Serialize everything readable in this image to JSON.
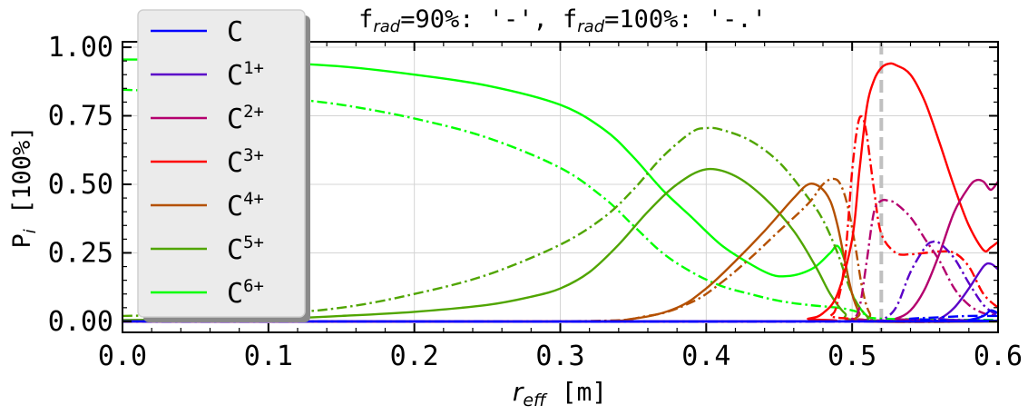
{
  "chart_data": {
    "type": "line",
    "title": {
      "f1": "f",
      "f1_sub": "rad",
      "f1_rest": "=90%: '-', ",
      "f2": "f",
      "f2_sub": "rad",
      "f2_rest": "=100%: '-.'"
    },
    "xlabel": {
      "main": "r",
      "sub": "eff",
      "unit": " [m]"
    },
    "ylabel": {
      "main": "P",
      "sub": "i",
      "unit": " [100%]"
    },
    "xlim": [
      0.0,
      0.6
    ],
    "ylim": [
      -0.04,
      1.02
    ],
    "x_ticks": [
      "0.0",
      "0.1",
      "0.2",
      "0.3",
      "0.4",
      "0.5",
      "0.6"
    ],
    "y_ticks": [
      "0.00",
      "0.25",
      "0.50",
      "0.75",
      "1.00"
    ],
    "grid": true,
    "legend_position": "upper-left",
    "vline": {
      "x": 0.52,
      "color": "#c0c0c0",
      "style": "dashed"
    },
    "line_styles": {
      "frad_90": "solid",
      "frad_100": "dashdot"
    },
    "legend": [
      {
        "base": "C",
        "sup": "",
        "color": "#0000ff"
      },
      {
        "base": "C",
        "sup": "1+",
        "color": "#5a00c8"
      },
      {
        "base": "C",
        "sup": "2+",
        "color": "#b4006e"
      },
      {
        "base": "C",
        "sup": "3+",
        "color": "#ff0000"
      },
      {
        "base": "C",
        "sup": "4+",
        "color": "#b45000"
      },
      {
        "base": "C",
        "sup": "5+",
        "color": "#50a500"
      },
      {
        "base": "C",
        "sup": "6+",
        "color": "#00ff00"
      }
    ],
    "series": [
      {
        "name": "C6+ (90%)",
        "color": "#00ff00",
        "dash": "solid",
        "points": [
          [
            0,
            0.955
          ],
          [
            0.05,
            0.955
          ],
          [
            0.1,
            0.945
          ],
          [
            0.15,
            0.93
          ],
          [
            0.2,
            0.9
          ],
          [
            0.25,
            0.86
          ],
          [
            0.3,
            0.79
          ],
          [
            0.33,
            0.7
          ],
          [
            0.35,
            0.6
          ],
          [
            0.37,
            0.48
          ],
          [
            0.39,
            0.38
          ],
          [
            0.41,
            0.28
          ],
          [
            0.43,
            0.21
          ],
          [
            0.445,
            0.17
          ],
          [
            0.455,
            0.165
          ],
          [
            0.465,
            0.175
          ],
          [
            0.475,
            0.2
          ],
          [
            0.485,
            0.25
          ],
          [
            0.49,
            0.275
          ],
          [
            0.495,
            0.22
          ],
          [
            0.5,
            0.1
          ],
          [
            0.51,
            0.02
          ],
          [
            0.52,
            0.0
          ],
          [
            0.6,
            0.0
          ]
        ]
      },
      {
        "name": "C6+ (100%)",
        "color": "#00ff00",
        "dash": "dashdot",
        "points": [
          [
            0,
            0.845
          ],
          [
            0.03,
            0.84
          ],
          [
            0.06,
            0.835
          ],
          [
            0.1,
            0.82
          ],
          [
            0.15,
            0.79
          ],
          [
            0.2,
            0.74
          ],
          [
            0.25,
            0.67
          ],
          [
            0.3,
            0.56
          ],
          [
            0.33,
            0.45
          ],
          [
            0.35,
            0.35
          ],
          [
            0.37,
            0.25
          ],
          [
            0.39,
            0.18
          ],
          [
            0.41,
            0.13
          ],
          [
            0.43,
            0.1
          ],
          [
            0.45,
            0.075
          ],
          [
            0.47,
            0.06
          ],
          [
            0.49,
            0.05
          ],
          [
            0.5,
            0.04
          ],
          [
            0.51,
            0.025
          ],
          [
            0.52,
            0.01
          ],
          [
            0.6,
            0.005
          ]
        ]
      },
      {
        "name": "C5+ (90%)",
        "color": "#50a500",
        "dash": "solid",
        "points": [
          [
            0,
            0.005
          ],
          [
            0.1,
            0.01
          ],
          [
            0.15,
            0.02
          ],
          [
            0.2,
            0.035
          ],
          [
            0.25,
            0.06
          ],
          [
            0.28,
            0.09
          ],
          [
            0.3,
            0.12
          ],
          [
            0.32,
            0.18
          ],
          [
            0.34,
            0.28
          ],
          [
            0.36,
            0.4
          ],
          [
            0.38,
            0.5
          ],
          [
            0.4,
            0.555
          ],
          [
            0.42,
            0.53
          ],
          [
            0.44,
            0.45
          ],
          [
            0.46,
            0.33
          ],
          [
            0.475,
            0.2
          ],
          [
            0.485,
            0.1
          ],
          [
            0.495,
            0.03
          ],
          [
            0.505,
            0.005
          ],
          [
            0.6,
            0.0
          ]
        ]
      },
      {
        "name": "C5+ (100%)",
        "color": "#50a500",
        "dash": "dashdot",
        "points": [
          [
            0,
            0.02
          ],
          [
            0.1,
            0.03
          ],
          [
            0.15,
            0.05
          ],
          [
            0.2,
            0.1
          ],
          [
            0.25,
            0.17
          ],
          [
            0.3,
            0.28
          ],
          [
            0.33,
            0.38
          ],
          [
            0.35,
            0.48
          ],
          [
            0.37,
            0.6
          ],
          [
            0.39,
            0.69
          ],
          [
            0.4,
            0.705
          ],
          [
            0.41,
            0.7
          ],
          [
            0.43,
            0.66
          ],
          [
            0.45,
            0.58
          ],
          [
            0.47,
            0.45
          ],
          [
            0.48,
            0.37
          ],
          [
            0.49,
            0.25
          ],
          [
            0.5,
            0.1
          ],
          [
            0.51,
            0.02
          ],
          [
            0.52,
            0.0
          ],
          [
            0.6,
            0.0
          ]
        ]
      },
      {
        "name": "C4+ (90%)",
        "color": "#b45000",
        "dash": "solid",
        "points": [
          [
            0,
            0.0
          ],
          [
            0.3,
            0.0
          ],
          [
            0.35,
            0.01
          ],
          [
            0.38,
            0.05
          ],
          [
            0.4,
            0.12
          ],
          [
            0.42,
            0.22
          ],
          [
            0.44,
            0.33
          ],
          [
            0.46,
            0.45
          ],
          [
            0.47,
            0.5
          ],
          [
            0.478,
            0.49
          ],
          [
            0.485,
            0.44
          ],
          [
            0.49,
            0.35
          ],
          [
            0.495,
            0.22
          ],
          [
            0.5,
            0.1
          ],
          [
            0.505,
            0.03
          ],
          [
            0.51,
            0.0
          ],
          [
            0.6,
            0.0
          ]
        ]
      },
      {
        "name": "C4+ (100%)",
        "color": "#b45000",
        "dash": "dashdot",
        "points": [
          [
            0,
            0.0
          ],
          [
            0.3,
            0.0
          ],
          [
            0.36,
            0.02
          ],
          [
            0.39,
            0.07
          ],
          [
            0.41,
            0.14
          ],
          [
            0.43,
            0.23
          ],
          [
            0.45,
            0.33
          ],
          [
            0.47,
            0.43
          ],
          [
            0.48,
            0.5
          ],
          [
            0.487,
            0.52
          ],
          [
            0.492,
            0.5
          ],
          [
            0.497,
            0.42
          ],
          [
            0.502,
            0.28
          ],
          [
            0.507,
            0.12
          ],
          [
            0.512,
            0.03
          ],
          [
            0.52,
            0.0
          ],
          [
            0.6,
            0.0
          ]
        ]
      },
      {
        "name": "C3+ (90%)",
        "color": "#ff0000",
        "dash": "solid",
        "points": [
          [
            0,
            0.0
          ],
          [
            0.45,
            0.0
          ],
          [
            0.47,
            0.01
          ],
          [
            0.48,
            0.03
          ],
          [
            0.49,
            0.1
          ],
          [
            0.5,
            0.3
          ],
          [
            0.505,
            0.55
          ],
          [
            0.51,
            0.78
          ],
          [
            0.515,
            0.88
          ],
          [
            0.52,
            0.925
          ],
          [
            0.525,
            0.94
          ],
          [
            0.53,
            0.935
          ],
          [
            0.54,
            0.9
          ],
          [
            0.55,
            0.8
          ],
          [
            0.56,
            0.65
          ],
          [
            0.57,
            0.49
          ],
          [
            0.58,
            0.35
          ],
          [
            0.59,
            0.26
          ],
          [
            0.595,
            0.27
          ],
          [
            0.6,
            0.29
          ]
        ]
      },
      {
        "name": "C3+ (100%)",
        "color": "#ff0000",
        "dash": "dashdot",
        "points": [
          [
            0,
            0.0
          ],
          [
            0.47,
            0.0
          ],
          [
            0.485,
            0.02
          ],
          [
            0.49,
            0.07
          ],
          [
            0.495,
            0.22
          ],
          [
            0.5,
            0.55
          ],
          [
            0.504,
            0.72
          ],
          [
            0.507,
            0.745
          ],
          [
            0.51,
            0.68
          ],
          [
            0.515,
            0.48
          ],
          [
            0.52,
            0.32
          ],
          [
            0.53,
            0.25
          ],
          [
            0.54,
            0.245
          ],
          [
            0.55,
            0.25
          ],
          [
            0.56,
            0.255
          ],
          [
            0.57,
            0.25
          ],
          [
            0.58,
            0.2
          ],
          [
            0.59,
            0.1
          ],
          [
            0.6,
            0.05
          ]
        ]
      },
      {
        "name": "C2+ (90%)",
        "color": "#b4006e",
        "dash": "solid",
        "points": [
          [
            0,
            0.0
          ],
          [
            0.52,
            0.0
          ],
          [
            0.53,
            0.01
          ],
          [
            0.54,
            0.04
          ],
          [
            0.55,
            0.12
          ],
          [
            0.56,
            0.25
          ],
          [
            0.57,
            0.4
          ],
          [
            0.58,
            0.49
          ],
          [
            0.585,
            0.515
          ],
          [
            0.59,
            0.51
          ],
          [
            0.595,
            0.48
          ],
          [
            0.6,
            0.51
          ]
        ]
      },
      {
        "name": "C2+ (100%)",
        "color": "#b4006e",
        "dash": "dashdot",
        "points": [
          [
            0,
            0.0
          ],
          [
            0.49,
            0.0
          ],
          [
            0.5,
            0.01
          ],
          [
            0.505,
            0.05
          ],
          [
            0.51,
            0.22
          ],
          [
            0.515,
            0.4
          ],
          [
            0.52,
            0.44
          ],
          [
            0.525,
            0.44
          ],
          [
            0.53,
            0.43
          ],
          [
            0.54,
            0.38
          ],
          [
            0.55,
            0.3
          ],
          [
            0.56,
            0.22
          ],
          [
            0.57,
            0.12
          ],
          [
            0.58,
            0.06
          ],
          [
            0.59,
            0.03
          ],
          [
            0.6,
            0.02
          ]
        ]
      },
      {
        "name": "C1+ (90%)",
        "color": "#5a00c8",
        "dash": "solid",
        "points": [
          [
            0,
            0.0
          ],
          [
            0.55,
            0.0
          ],
          [
            0.56,
            0.01
          ],
          [
            0.57,
            0.05
          ],
          [
            0.58,
            0.12
          ],
          [
            0.59,
            0.2
          ],
          [
            0.595,
            0.21
          ],
          [
            0.6,
            0.19
          ]
        ]
      },
      {
        "name": "C1+ (100%)",
        "color": "#5a00c8",
        "dash": "dashdot",
        "points": [
          [
            0,
            0.0
          ],
          [
            0.51,
            0.0
          ],
          [
            0.52,
            0.005
          ],
          [
            0.53,
            0.05
          ],
          [
            0.54,
            0.18
          ],
          [
            0.55,
            0.27
          ],
          [
            0.555,
            0.29
          ],
          [
            0.56,
            0.285
          ],
          [
            0.57,
            0.23
          ],
          [
            0.58,
            0.14
          ],
          [
            0.59,
            0.06
          ],
          [
            0.6,
            0.02
          ]
        ]
      },
      {
        "name": "C (90%)",
        "color": "#0000ff",
        "dash": "solid",
        "points": [
          [
            0,
            0.0
          ],
          [
            0.57,
            0.0
          ],
          [
            0.58,
            0.005
          ],
          [
            0.59,
            0.02
          ],
          [
            0.595,
            0.04
          ],
          [
            0.6,
            0.03
          ]
        ]
      },
      {
        "name": "C (100%)",
        "color": "#0000ff",
        "dash": "dashdot",
        "points": [
          [
            0,
            0.0
          ],
          [
            0.52,
            0.0
          ],
          [
            0.54,
            0.01
          ],
          [
            0.56,
            0.015
          ],
          [
            0.58,
            0.02
          ],
          [
            0.59,
            0.02
          ],
          [
            0.6,
            0.02
          ]
        ]
      }
    ]
  }
}
